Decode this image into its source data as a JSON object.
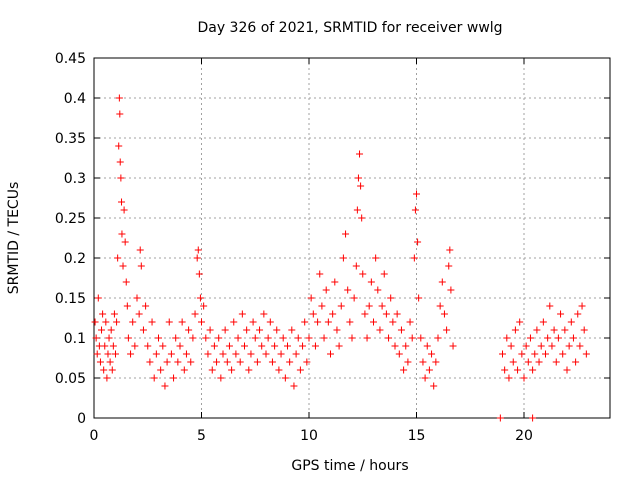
{
  "chart_data": {
    "type": "scatter",
    "title": "Day 326 of 2021, SRMTID for receiver wwlg",
    "xlabel": "GPS time / hours",
    "ylabel": "SRMTID / TECUs",
    "xlim": [
      0,
      24
    ],
    "ylim": [
      0,
      0.45
    ],
    "xticks": [
      0,
      5,
      10,
      15,
      20
    ],
    "xtick_labels": [
      "0",
      "5",
      "10",
      "15",
      "20"
    ],
    "yticks": [
      0,
      0.05,
      0.1,
      0.15,
      0.2,
      0.25,
      0.3,
      0.35,
      0.4,
      0.45
    ],
    "ytick_labels": [
      "0",
      "0.05",
      "0.1",
      "0.15",
      "0.2",
      "0.25",
      "0.3",
      "0.35",
      "0.4",
      "0.45"
    ],
    "grid": true,
    "marker": "+",
    "color": "#ff0000",
    "series": [
      {
        "name": "SRMTID",
        "points": [
          [
            0.05,
            0.12
          ],
          [
            0.1,
            0.1
          ],
          [
            0.15,
            0.08
          ],
          [
            0.2,
            0.15
          ],
          [
            0.25,
            0.09
          ],
          [
            0.3,
            0.07
          ],
          [
            0.35,
            0.11
          ],
          [
            0.4,
            0.13
          ],
          [
            0.45,
            0.06
          ],
          [
            0.5,
            0.09
          ],
          [
            0.55,
            0.12
          ],
          [
            0.6,
            0.05
          ],
          [
            0.65,
            0.08
          ],
          [
            0.7,
            0.1
          ],
          [
            0.75,
            0.07
          ],
          [
            0.8,
            0.11
          ],
          [
            0.85,
            0.06
          ],
          [
            0.9,
            0.09
          ],
          [
            0.95,
            0.13
          ],
          [
            1.0,
            0.08
          ],
          [
            1.05,
            0.12
          ],
          [
            1.1,
            0.2
          ],
          [
            1.15,
            0.34
          ],
          [
            1.18,
            0.4
          ],
          [
            1.2,
            0.38
          ],
          [
            1.22,
            0.32
          ],
          [
            1.25,
            0.3
          ],
          [
            1.28,
            0.27
          ],
          [
            1.3,
            0.23
          ],
          [
            1.35,
            0.19
          ],
          [
            1.4,
            0.26
          ],
          [
            1.45,
            0.22
          ],
          [
            1.5,
            0.17
          ],
          [
            1.55,
            0.14
          ],
          [
            1.6,
            0.1
          ],
          [
            1.7,
            0.08
          ],
          [
            1.8,
            0.12
          ],
          [
            1.9,
            0.09
          ],
          [
            2.0,
            0.15
          ],
          [
            2.1,
            0.13
          ],
          [
            2.15,
            0.21
          ],
          [
            2.2,
            0.19
          ],
          [
            2.3,
            0.11
          ],
          [
            2.4,
            0.14
          ],
          [
            2.5,
            0.09
          ],
          [
            2.6,
            0.07
          ],
          [
            2.7,
            0.12
          ],
          [
            2.8,
            0.05
          ],
          [
            2.9,
            0.08
          ],
          [
            3.0,
            0.1
          ],
          [
            3.1,
            0.06
          ],
          [
            3.2,
            0.09
          ],
          [
            3.3,
            0.04
          ],
          [
            3.4,
            0.07
          ],
          [
            3.5,
            0.12
          ],
          [
            3.6,
            0.08
          ],
          [
            3.7,
            0.05
          ],
          [
            3.8,
            0.1
          ],
          [
            3.9,
            0.07
          ],
          [
            4.0,
            0.09
          ],
          [
            4.1,
            0.12
          ],
          [
            4.2,
            0.06
          ],
          [
            4.3,
            0.08
          ],
          [
            4.4,
            0.11
          ],
          [
            4.5,
            0.07
          ],
          [
            4.6,
            0.1
          ],
          [
            4.7,
            0.13
          ],
          [
            4.8,
            0.2
          ],
          [
            4.85,
            0.21
          ],
          [
            4.9,
            0.18
          ],
          [
            4.95,
            0.15
          ],
          [
            5.0,
            0.12
          ],
          [
            5.1,
            0.14
          ],
          [
            5.2,
            0.1
          ],
          [
            5.3,
            0.08
          ],
          [
            5.4,
            0.11
          ],
          [
            5.5,
            0.06
          ],
          [
            5.6,
            0.09
          ],
          [
            5.7,
            0.07
          ],
          [
            5.8,
            0.1
          ],
          [
            5.9,
            0.05
          ],
          [
            6.0,
            0.08
          ],
          [
            6.1,
            0.11
          ],
          [
            6.2,
            0.07
          ],
          [
            6.3,
            0.09
          ],
          [
            6.4,
            0.06
          ],
          [
            6.5,
            0.12
          ],
          [
            6.6,
            0.08
          ],
          [
            6.7,
            0.1
          ],
          [
            6.8,
            0.07
          ],
          [
            6.9,
            0.13
          ],
          [
            7.0,
            0.09
          ],
          [
            7.1,
            0.11
          ],
          [
            7.2,
            0.06
          ],
          [
            7.3,
            0.08
          ],
          [
            7.4,
            0.12
          ],
          [
            7.5,
            0.1
          ],
          [
            7.6,
            0.07
          ],
          [
            7.7,
            0.11
          ],
          [
            7.8,
            0.09
          ],
          [
            7.9,
            0.13
          ],
          [
            8.0,
            0.08
          ],
          [
            8.1,
            0.1
          ],
          [
            8.2,
            0.12
          ],
          [
            8.3,
            0.07
          ],
          [
            8.4,
            0.09
          ],
          [
            8.5,
            0.11
          ],
          [
            8.6,
            0.06
          ],
          [
            8.7,
            0.08
          ],
          [
            8.8,
            0.1
          ],
          [
            8.9,
            0.05
          ],
          [
            9.0,
            0.09
          ],
          [
            9.1,
            0.07
          ],
          [
            9.2,
            0.11
          ],
          [
            9.3,
            0.04
          ],
          [
            9.4,
            0.08
          ],
          [
            9.5,
            0.1
          ],
          [
            9.6,
            0.06
          ],
          [
            9.7,
            0.09
          ],
          [
            9.8,
            0.12
          ],
          [
            9.9,
            0.07
          ],
          [
            10.0,
            0.1
          ],
          [
            10.1,
            0.15
          ],
          [
            10.2,
            0.13
          ],
          [
            10.3,
            0.09
          ],
          [
            10.4,
            0.12
          ],
          [
            10.5,
            0.18
          ],
          [
            10.6,
            0.14
          ],
          [
            10.7,
            0.1
          ],
          [
            10.8,
            0.16
          ],
          [
            10.9,
            0.12
          ],
          [
            11.0,
            0.08
          ],
          [
            11.1,
            0.13
          ],
          [
            11.2,
            0.17
          ],
          [
            11.3,
            0.11
          ],
          [
            11.4,
            0.09
          ],
          [
            11.5,
            0.14
          ],
          [
            11.6,
            0.2
          ],
          [
            11.7,
            0.23
          ],
          [
            11.8,
            0.16
          ],
          [
            11.9,
            0.12
          ],
          [
            12.0,
            0.1
          ],
          [
            12.1,
            0.15
          ],
          [
            12.2,
            0.19
          ],
          [
            12.25,
            0.26
          ],
          [
            12.3,
            0.3
          ],
          [
            12.35,
            0.33
          ],
          [
            12.4,
            0.29
          ],
          [
            12.45,
            0.25
          ],
          [
            12.5,
            0.18
          ],
          [
            12.6,
            0.13
          ],
          [
            12.7,
            0.1
          ],
          [
            12.8,
            0.14
          ],
          [
            12.9,
            0.17
          ],
          [
            13.0,
            0.12
          ],
          [
            13.1,
            0.2
          ],
          [
            13.2,
            0.16
          ],
          [
            13.3,
            0.11
          ],
          [
            13.4,
            0.14
          ],
          [
            13.5,
            0.18
          ],
          [
            13.6,
            0.13
          ],
          [
            13.7,
            0.1
          ],
          [
            13.8,
            0.15
          ],
          [
            13.9,
            0.12
          ],
          [
            14.0,
            0.09
          ],
          [
            14.1,
            0.13
          ],
          [
            14.2,
            0.08
          ],
          [
            14.3,
            0.11
          ],
          [
            14.4,
            0.06
          ],
          [
            14.5,
            0.09
          ],
          [
            14.6,
            0.07
          ],
          [
            14.7,
            0.12
          ],
          [
            14.8,
            0.1
          ],
          [
            14.9,
            0.2
          ],
          [
            14.95,
            0.26
          ],
          [
            15.0,
            0.28
          ],
          [
            15.05,
            0.22
          ],
          [
            15.1,
            0.15
          ],
          [
            15.2,
            0.1
          ],
          [
            15.3,
            0.07
          ],
          [
            15.4,
            0.05
          ],
          [
            15.5,
            0.09
          ],
          [
            15.6,
            0.06
          ],
          [
            15.7,
            0.08
          ],
          [
            15.8,
            0.04
          ],
          [
            15.9,
            0.07
          ],
          [
            16.0,
            0.1
          ],
          [
            16.1,
            0.14
          ],
          [
            16.2,
            0.17
          ],
          [
            16.3,
            0.13
          ],
          [
            16.4,
            0.11
          ],
          [
            16.5,
            0.19
          ],
          [
            16.55,
            0.21
          ],
          [
            16.6,
            0.16
          ],
          [
            16.7,
            0.09
          ],
          [
            18.9,
            0.0
          ],
          [
            20.4,
            0.0
          ],
          [
            19.0,
            0.08
          ],
          [
            19.1,
            0.06
          ],
          [
            19.2,
            0.1
          ],
          [
            19.3,
            0.05
          ],
          [
            19.4,
            0.09
          ],
          [
            19.5,
            0.07
          ],
          [
            19.6,
            0.11
          ],
          [
            19.7,
            0.06
          ],
          [
            19.8,
            0.12
          ],
          [
            19.9,
            0.08
          ],
          [
            20.0,
            0.05
          ],
          [
            20.1,
            0.09
          ],
          [
            20.2,
            0.07
          ],
          [
            20.3,
            0.1
          ],
          [
            20.4,
            0.06
          ],
          [
            20.5,
            0.08
          ],
          [
            20.6,
            0.11
          ],
          [
            20.7,
            0.07
          ],
          [
            20.8,
            0.09
          ],
          [
            20.9,
            0.12
          ],
          [
            21.0,
            0.08
          ],
          [
            21.1,
            0.1
          ],
          [
            21.2,
            0.14
          ],
          [
            21.3,
            0.09
          ],
          [
            21.4,
            0.11
          ],
          [
            21.5,
            0.07
          ],
          [
            21.6,
            0.1
          ],
          [
            21.7,
            0.13
          ],
          [
            21.8,
            0.08
          ],
          [
            21.9,
            0.11
          ],
          [
            22.0,
            0.06
          ],
          [
            22.1,
            0.09
          ],
          [
            22.2,
            0.12
          ],
          [
            22.3,
            0.1
          ],
          [
            22.4,
            0.07
          ],
          [
            22.5,
            0.13
          ],
          [
            22.6,
            0.09
          ],
          [
            22.7,
            0.14
          ],
          [
            22.8,
            0.11
          ],
          [
            22.9,
            0.08
          ]
        ]
      }
    ]
  }
}
